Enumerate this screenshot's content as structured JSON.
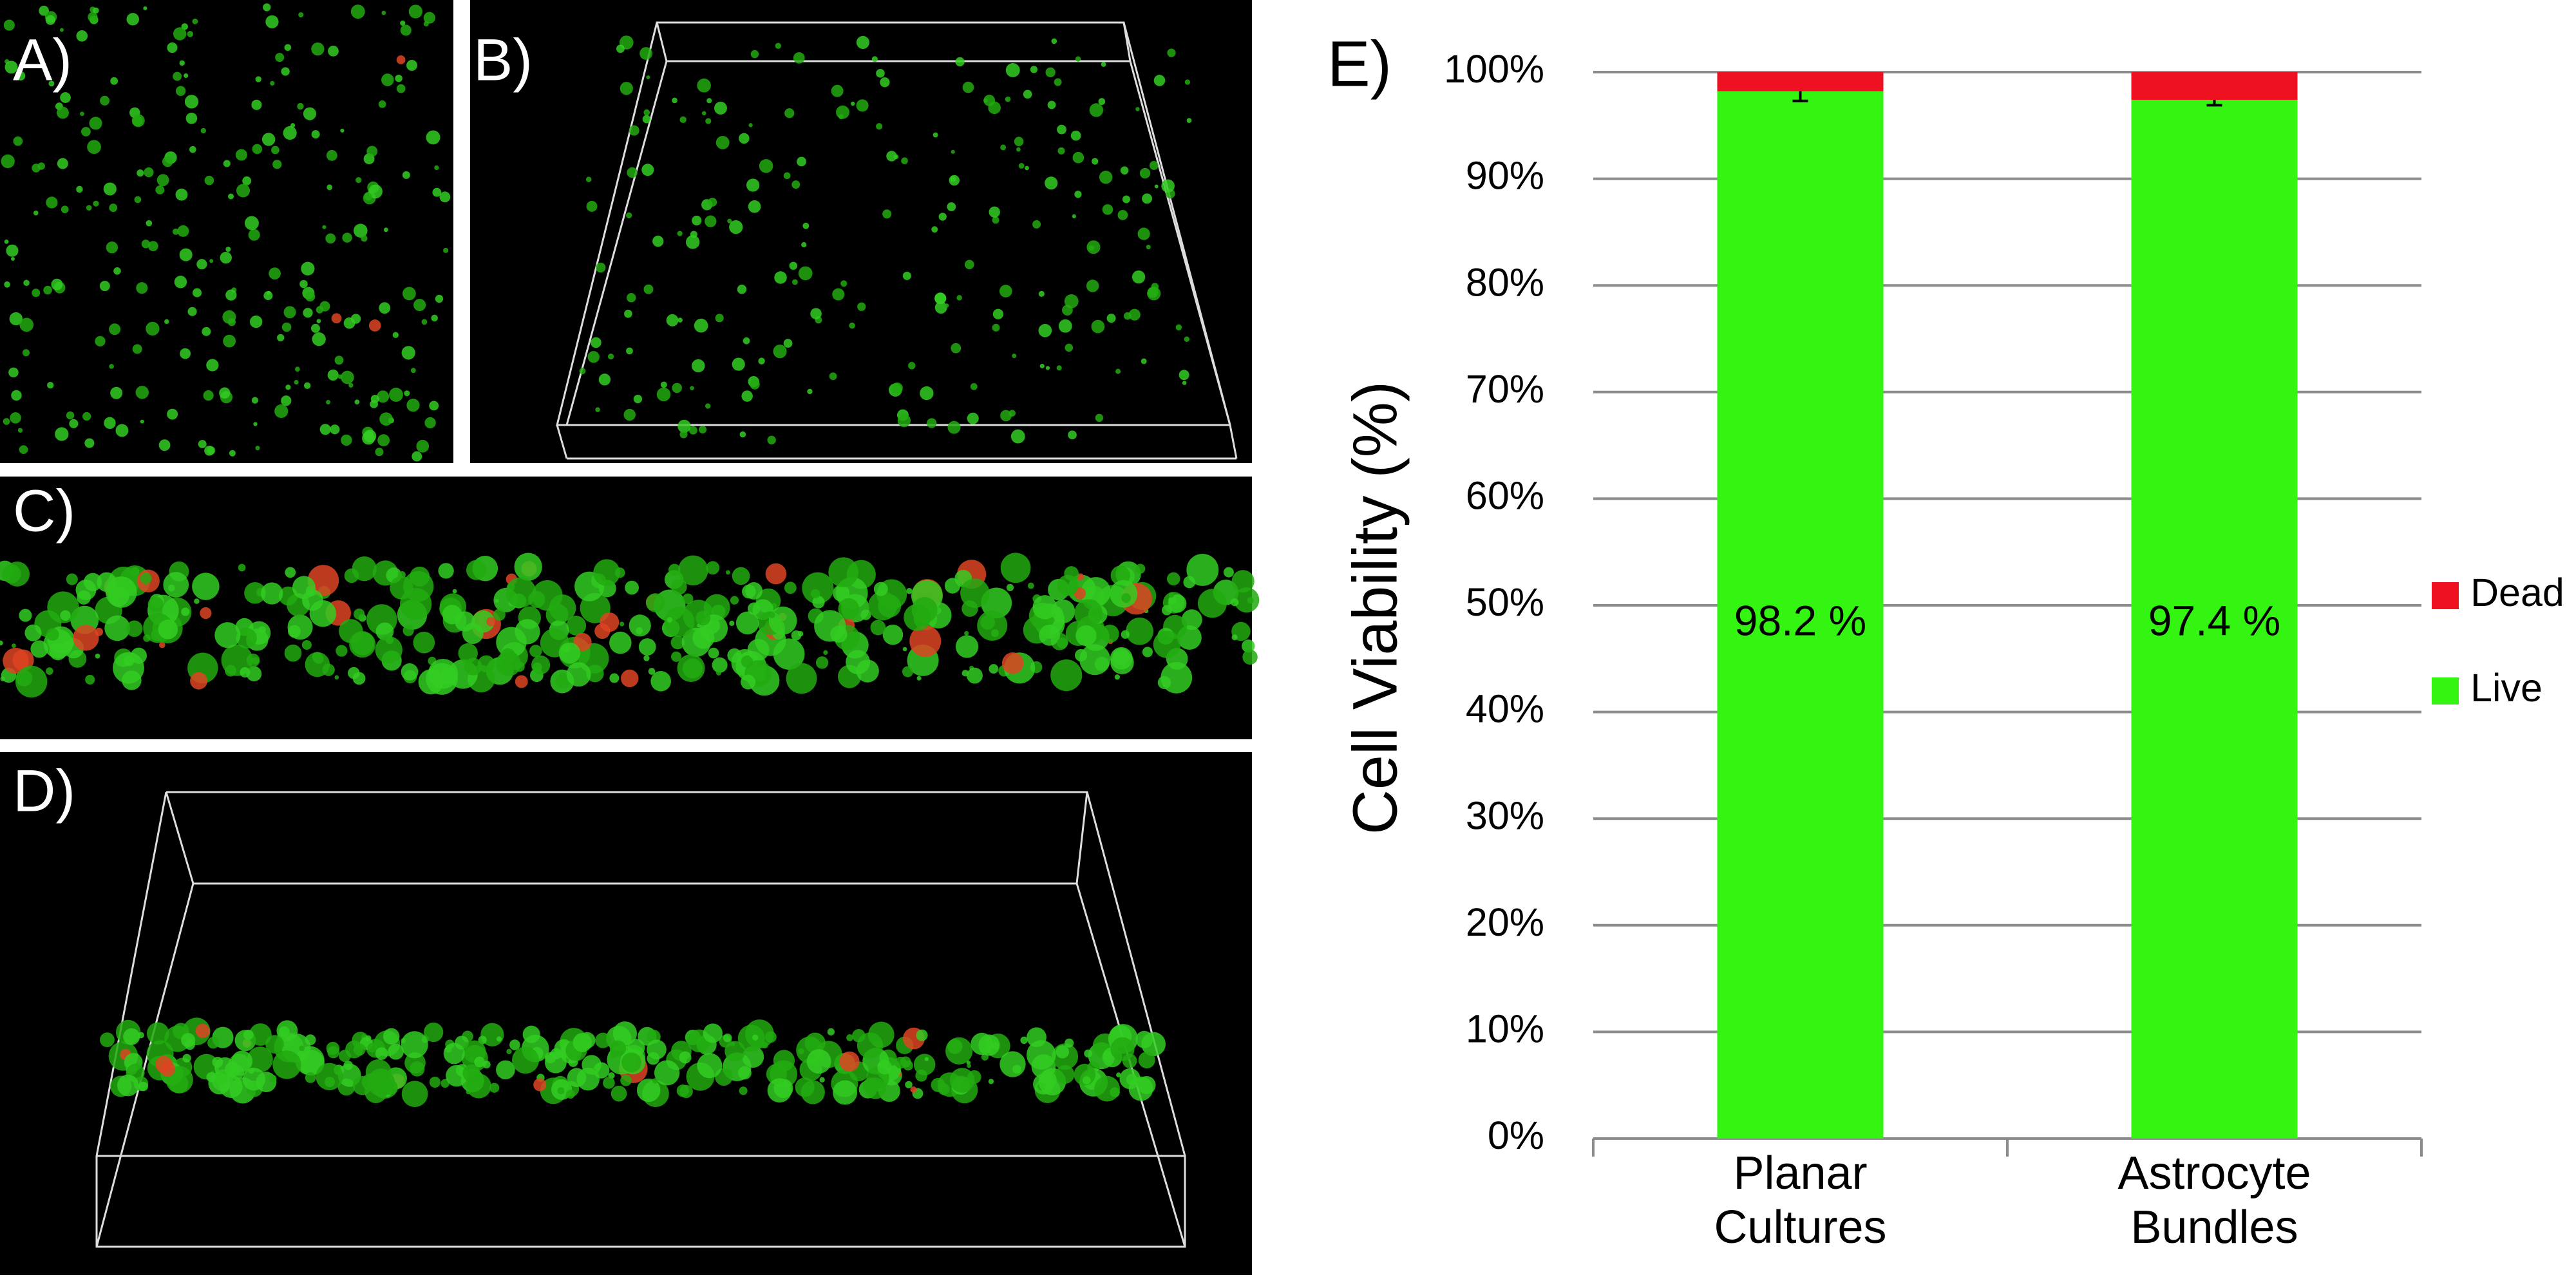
{
  "panels": [
    "A)",
    "B)",
    "C)",
    "D)"
  ],
  "chart_data": {
    "type": "stacked_bar",
    "panel_label": "E)",
    "ylabel": "Cell Viability (%)",
    "categories": [
      "Planar Cultures",
      "Astrocyte Bundles"
    ],
    "series": [
      {
        "name": "Live",
        "color": "#33f511",
        "values": [
          98.2,
          97.4
        ],
        "value_labels": [
          "98.2 %",
          "97.4 %"
        ],
        "errors": [
          0.9,
          0.5
        ]
      },
      {
        "name": "Dead",
        "color": "#ee1122",
        "values": [
          1.8,
          2.6
        ]
      }
    ],
    "ylim": [
      0,
      100
    ],
    "yticks": [
      {
        "value": 0,
        "label": "0%"
      },
      {
        "value": 10,
        "label": "10%"
      },
      {
        "value": 20,
        "label": "20%"
      },
      {
        "value": 30,
        "label": "30%"
      },
      {
        "value": 40,
        "label": "40%"
      },
      {
        "value": 50,
        "label": "50%"
      },
      {
        "value": 60,
        "label": "60%"
      },
      {
        "value": 70,
        "label": "70%"
      },
      {
        "value": 80,
        "label": "80%"
      },
      {
        "value": 90,
        "label": "90%"
      },
      {
        "value": 100,
        "label": "100%"
      }
    ],
    "grid": true,
    "legend": "right"
  }
}
